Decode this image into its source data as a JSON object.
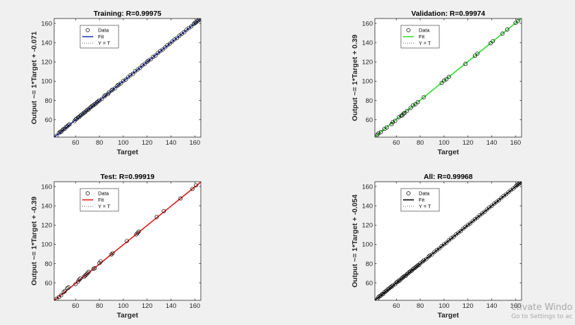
{
  "chart_data": [
    {
      "type": "scatter",
      "title": "Training: R=0.99975",
      "xlabel": "Target",
      "ylabel": "Output ~= 1*Target + -0.071",
      "xlim": [
        42,
        165
      ],
      "ylim": [
        42,
        165
      ],
      "xticks": [
        60,
        80,
        100,
        120,
        140,
        160
      ],
      "yticks": [
        60,
        80,
        100,
        120,
        140,
        160
      ],
      "grid": false,
      "legend_position": "top-left",
      "legend": [
        "Data",
        "Fit",
        "Y = T"
      ],
      "fit": {
        "slope": 1,
        "intercept": -0.071,
        "color": "#1f2fb0"
      },
      "points": [
        [
          44,
          43.5
        ],
        [
          46,
          46.2
        ],
        [
          47,
          47.5
        ],
        [
          48,
          47.6
        ],
        [
          49,
          49.3
        ],
        [
          50,
          50.4
        ],
        [
          51,
          50.8
        ],
        [
          52,
          52.5
        ],
        [
          53,
          53.2
        ],
        [
          54,
          54.6
        ],
        [
          55,
          55.3
        ],
        [
          59,
          58.6
        ],
        [
          60,
          60.4
        ],
        [
          61,
          61.2
        ],
        [
          62,
          62.5
        ],
        [
          63,
          62.8
        ],
        [
          64,
          64.4
        ],
        [
          65,
          65.2
        ],
        [
          66,
          66.1
        ],
        [
          67,
          67.4
        ],
        [
          68,
          67.8
        ],
        [
          69,
          69.3
        ],
        [
          70,
          70.4
        ],
        [
          71,
          70.7
        ],
        [
          72,
          72.4
        ],
        [
          73,
          73.2
        ],
        [
          74,
          74.5
        ],
        [
          75,
          75.1
        ],
        [
          76,
          76.3
        ],
        [
          77,
          76.8
        ],
        [
          78,
          78.2
        ],
        [
          79,
          79.4
        ],
        [
          80,
          80.1
        ],
        [
          82,
          81.6
        ],
        [
          84,
          84.3
        ],
        [
          85,
          85.4
        ],
        [
          87,
          86.6
        ],
        [
          88,
          88.2
        ],
        [
          90,
          90.4
        ],
        [
          91,
          91.3
        ],
        [
          93,
          92.7
        ],
        [
          95,
          95.3
        ],
        [
          96,
          96.4
        ],
        [
          98,
          97.8
        ],
        [
          100,
          100.2
        ],
        [
          102,
          101.6
        ],
        [
          104,
          104.3
        ],
        [
          106,
          106.2
        ],
        [
          108,
          107.7
        ],
        [
          110,
          110.4
        ],
        [
          112,
          112.1
        ],
        [
          114,
          113.8
        ],
        [
          116,
          116.3
        ],
        [
          118,
          117.9
        ],
        [
          120,
          120.2
        ],
        [
          121,
          121.4
        ],
        [
          123,
          122.8
        ],
        [
          125,
          125.2
        ],
        [
          127,
          126.7
        ],
        [
          129,
          129.3
        ],
        [
          131,
          131.2
        ],
        [
          133,
          132.8
        ],
        [
          135,
          135.1
        ],
        [
          137,
          137.4
        ],
        [
          139,
          138.9
        ],
        [
          141,
          141.2
        ],
        [
          143,
          143.3
        ],
        [
          145,
          144.8
        ],
        [
          147,
          147.2
        ],
        [
          149,
          149.1
        ],
        [
          151,
          150.8
        ],
        [
          153,
          153.3
        ],
        [
          155,
          155.2
        ],
        [
          157,
          156.8
        ],
        [
          159,
          159.2
        ],
        [
          160,
          160.4
        ],
        [
          161,
          160.9
        ],
        [
          162,
          162.3
        ],
        [
          163,
          163.1
        ],
        [
          164,
          164.2
        ]
      ]
    },
    {
      "type": "scatter",
      "title": "Validation: R=0.99974",
      "xlabel": "Target",
      "ylabel": "Output ~= 1*Target + 0.39",
      "xlim": [
        42,
        165
      ],
      "ylim": [
        42,
        165
      ],
      "xticks": [
        60,
        80,
        100,
        120,
        140,
        160
      ],
      "yticks": [
        60,
        80,
        100,
        120,
        140,
        160
      ],
      "grid": false,
      "legend_position": "top-left",
      "legend": [
        "Data",
        "Fit",
        "Y = T"
      ],
      "fit": {
        "slope": 1,
        "intercept": 0.39,
        "color": "#2ee02e"
      },
      "points": [
        [
          44,
          44.4
        ],
        [
          45,
          45.9
        ],
        [
          47,
          47.2
        ],
        [
          50,
          50.4
        ],
        [
          52,
          52.1
        ],
        [
          56,
          55.5
        ],
        [
          57,
          57.4
        ],
        [
          59,
          58.9
        ],
        [
          62,
          62.7
        ],
        [
          64,
          64.2
        ],
        [
          65,
          64.6
        ],
        [
          66,
          66.4
        ],
        [
          67,
          67.1
        ],
        [
          69,
          69.2
        ],
        [
          72,
          72.3
        ],
        [
          74,
          74.9
        ],
        [
          76,
          76.2
        ],
        [
          78,
          78.4
        ],
        [
          83,
          83.4
        ],
        [
          98,
          98.2
        ],
        [
          100,
          100.6
        ],
        [
          102,
          102.1
        ],
        [
          104,
          104.4
        ],
        [
          118,
          117.9
        ],
        [
          126,
          126.4
        ],
        [
          128,
          128.5
        ],
        [
          139,
          139.3
        ],
        [
          141,
          141.6
        ],
        [
          149,
          149.3
        ],
        [
          153,
          153.6
        ],
        [
          160,
          160.5
        ],
        [
          162,
          162.4
        ]
      ]
    },
    {
      "type": "scatter",
      "title": "Test: R=0.99919",
      "xlabel": "Target",
      "ylabel": "Output ~= 1*Target + -0.39",
      "xlim": [
        42,
        165
      ],
      "ylim": [
        42,
        165
      ],
      "xticks": [
        60,
        80,
        100,
        120,
        140,
        160
      ],
      "yticks": [
        60,
        80,
        100,
        120,
        140,
        160
      ],
      "grid": false,
      "legend_position": "top-left",
      "legend": [
        "Data",
        "Fit",
        "Y = T"
      ],
      "fit": {
        "slope": 1,
        "intercept": -0.39,
        "color": "#e01818"
      },
      "points": [
        [
          44,
          43.6
        ],
        [
          46,
          45.4
        ],
        [
          48,
          47.3
        ],
        [
          50,
          50.6
        ],
        [
          51,
          51.6
        ],
        [
          53,
          54.6
        ],
        [
          54,
          55.4
        ],
        [
          60,
          58.8
        ],
        [
          62,
          61.4
        ],
        [
          63,
          63.4
        ],
        [
          64,
          64.6
        ],
        [
          67,
          66.4
        ],
        [
          68,
          67.5
        ],
        [
          69,
          68.7
        ],
        [
          70,
          70.2
        ],
        [
          71,
          71.4
        ],
        [
          75,
          74.6
        ],
        [
          76,
          75.3
        ],
        [
          80,
          80.6
        ],
        [
          81,
          82.3
        ],
        [
          90,
          89.5
        ],
        [
          91,
          90.8
        ],
        [
          103,
          103.6
        ],
        [
          111,
          110.4
        ],
        [
          112,
          111.8
        ],
        [
          113,
          113.3
        ],
        [
          128,
          128.4
        ],
        [
          134,
          134.6
        ],
        [
          148,
          147.6
        ],
        [
          158,
          157.6
        ],
        [
          161,
          161.2
        ]
      ]
    },
    {
      "type": "scatter",
      "title": "All: R=0.99968",
      "xlabel": "Target",
      "ylabel": "Output ~= 1*Target + -0.054",
      "xlim": [
        42,
        165
      ],
      "ylim": [
        42,
        165
      ],
      "xticks": [
        60,
        80,
        100,
        120,
        140,
        160
      ],
      "yticks": [
        60,
        80,
        100,
        120,
        140,
        160
      ],
      "grid": false,
      "legend_position": "top-left",
      "legend": [
        "Data",
        "Fit",
        "Y = T"
      ],
      "fit": {
        "slope": 1,
        "intercept": -0.054,
        "color": "#000000"
      },
      "points": [
        [
          44,
          43.5
        ],
        [
          45,
          45.2
        ],
        [
          46,
          46.4
        ],
        [
          47,
          46.8
        ],
        [
          48,
          48.3
        ],
        [
          49,
          48.6
        ],
        [
          50,
          50.4
        ],
        [
          51,
          51.3
        ],
        [
          52,
          52.2
        ],
        [
          53,
          53.5
        ],
        [
          54,
          54.3
        ],
        [
          55,
          55.6
        ],
        [
          56,
          56.2
        ],
        [
          57,
          57.3
        ],
        [
          59,
          58.7
        ],
        [
          60,
          60.4
        ],
        [
          61,
          61.1
        ],
        [
          62,
          62.4
        ],
        [
          63,
          62.7
        ],
        [
          64,
          64.3
        ],
        [
          65,
          65.1
        ],
        [
          66,
          66.4
        ],
        [
          67,
          67.2
        ],
        [
          68,
          67.6
        ],
        [
          69,
          69.3
        ],
        [
          70,
          70.1
        ],
        [
          71,
          71.4
        ],
        [
          72,
          72.2
        ],
        [
          73,
          72.8
        ],
        [
          74,
          74.4
        ],
        [
          75,
          75.2
        ],
        [
          76,
          76.1
        ],
        [
          77,
          77.3
        ],
        [
          78,
          78.2
        ],
        [
          79,
          78.7
        ],
        [
          80,
          80.3
        ],
        [
          82,
          82.2
        ],
        [
          83,
          83.4
        ],
        [
          85,
          84.8
        ],
        [
          87,
          87.2
        ],
        [
          88,
          88.4
        ],
        [
          90,
          89.7
        ],
        [
          92,
          92.3
        ],
        [
          94,
          94.1
        ],
        [
          96,
          95.8
        ],
        [
          98,
          98.2
        ],
        [
          100,
          100.1
        ],
        [
          102,
          101.8
        ],
        [
          104,
          104.2
        ],
        [
          106,
          106.3
        ],
        [
          108,
          107.8
        ],
        [
          110,
          110.2
        ],
        [
          112,
          112.1
        ],
        [
          114,
          113.8
        ],
        [
          116,
          116.2
        ],
        [
          118,
          118.3
        ],
        [
          120,
          120.1
        ],
        [
          122,
          121.8
        ],
        [
          124,
          124.2
        ],
        [
          126,
          126.1
        ],
        [
          128,
          127.9
        ],
        [
          130,
          130.2
        ],
        [
          132,
          132.1
        ],
        [
          134,
          133.8
        ],
        [
          136,
          136.2
        ],
        [
          138,
          138.3
        ],
        [
          140,
          139.9
        ],
        [
          142,
          142.2
        ],
        [
          144,
          144.1
        ],
        [
          146,
          145.8
        ],
        [
          148,
          148.2
        ],
        [
          150,
          150.3
        ],
        [
          152,
          151.9
        ],
        [
          154,
          154.1
        ],
        [
          156,
          156.2
        ],
        [
          158,
          157.8
        ],
        [
          160,
          160.1
        ],
        [
          161,
          161.3
        ],
        [
          162,
          162.2
        ],
        [
          163,
          163.1
        ],
        [
          164,
          164.3
        ]
      ]
    }
  ],
  "watermark": {
    "line1": "ctivate Windo",
    "line2": "Go to Settings to ac"
  }
}
